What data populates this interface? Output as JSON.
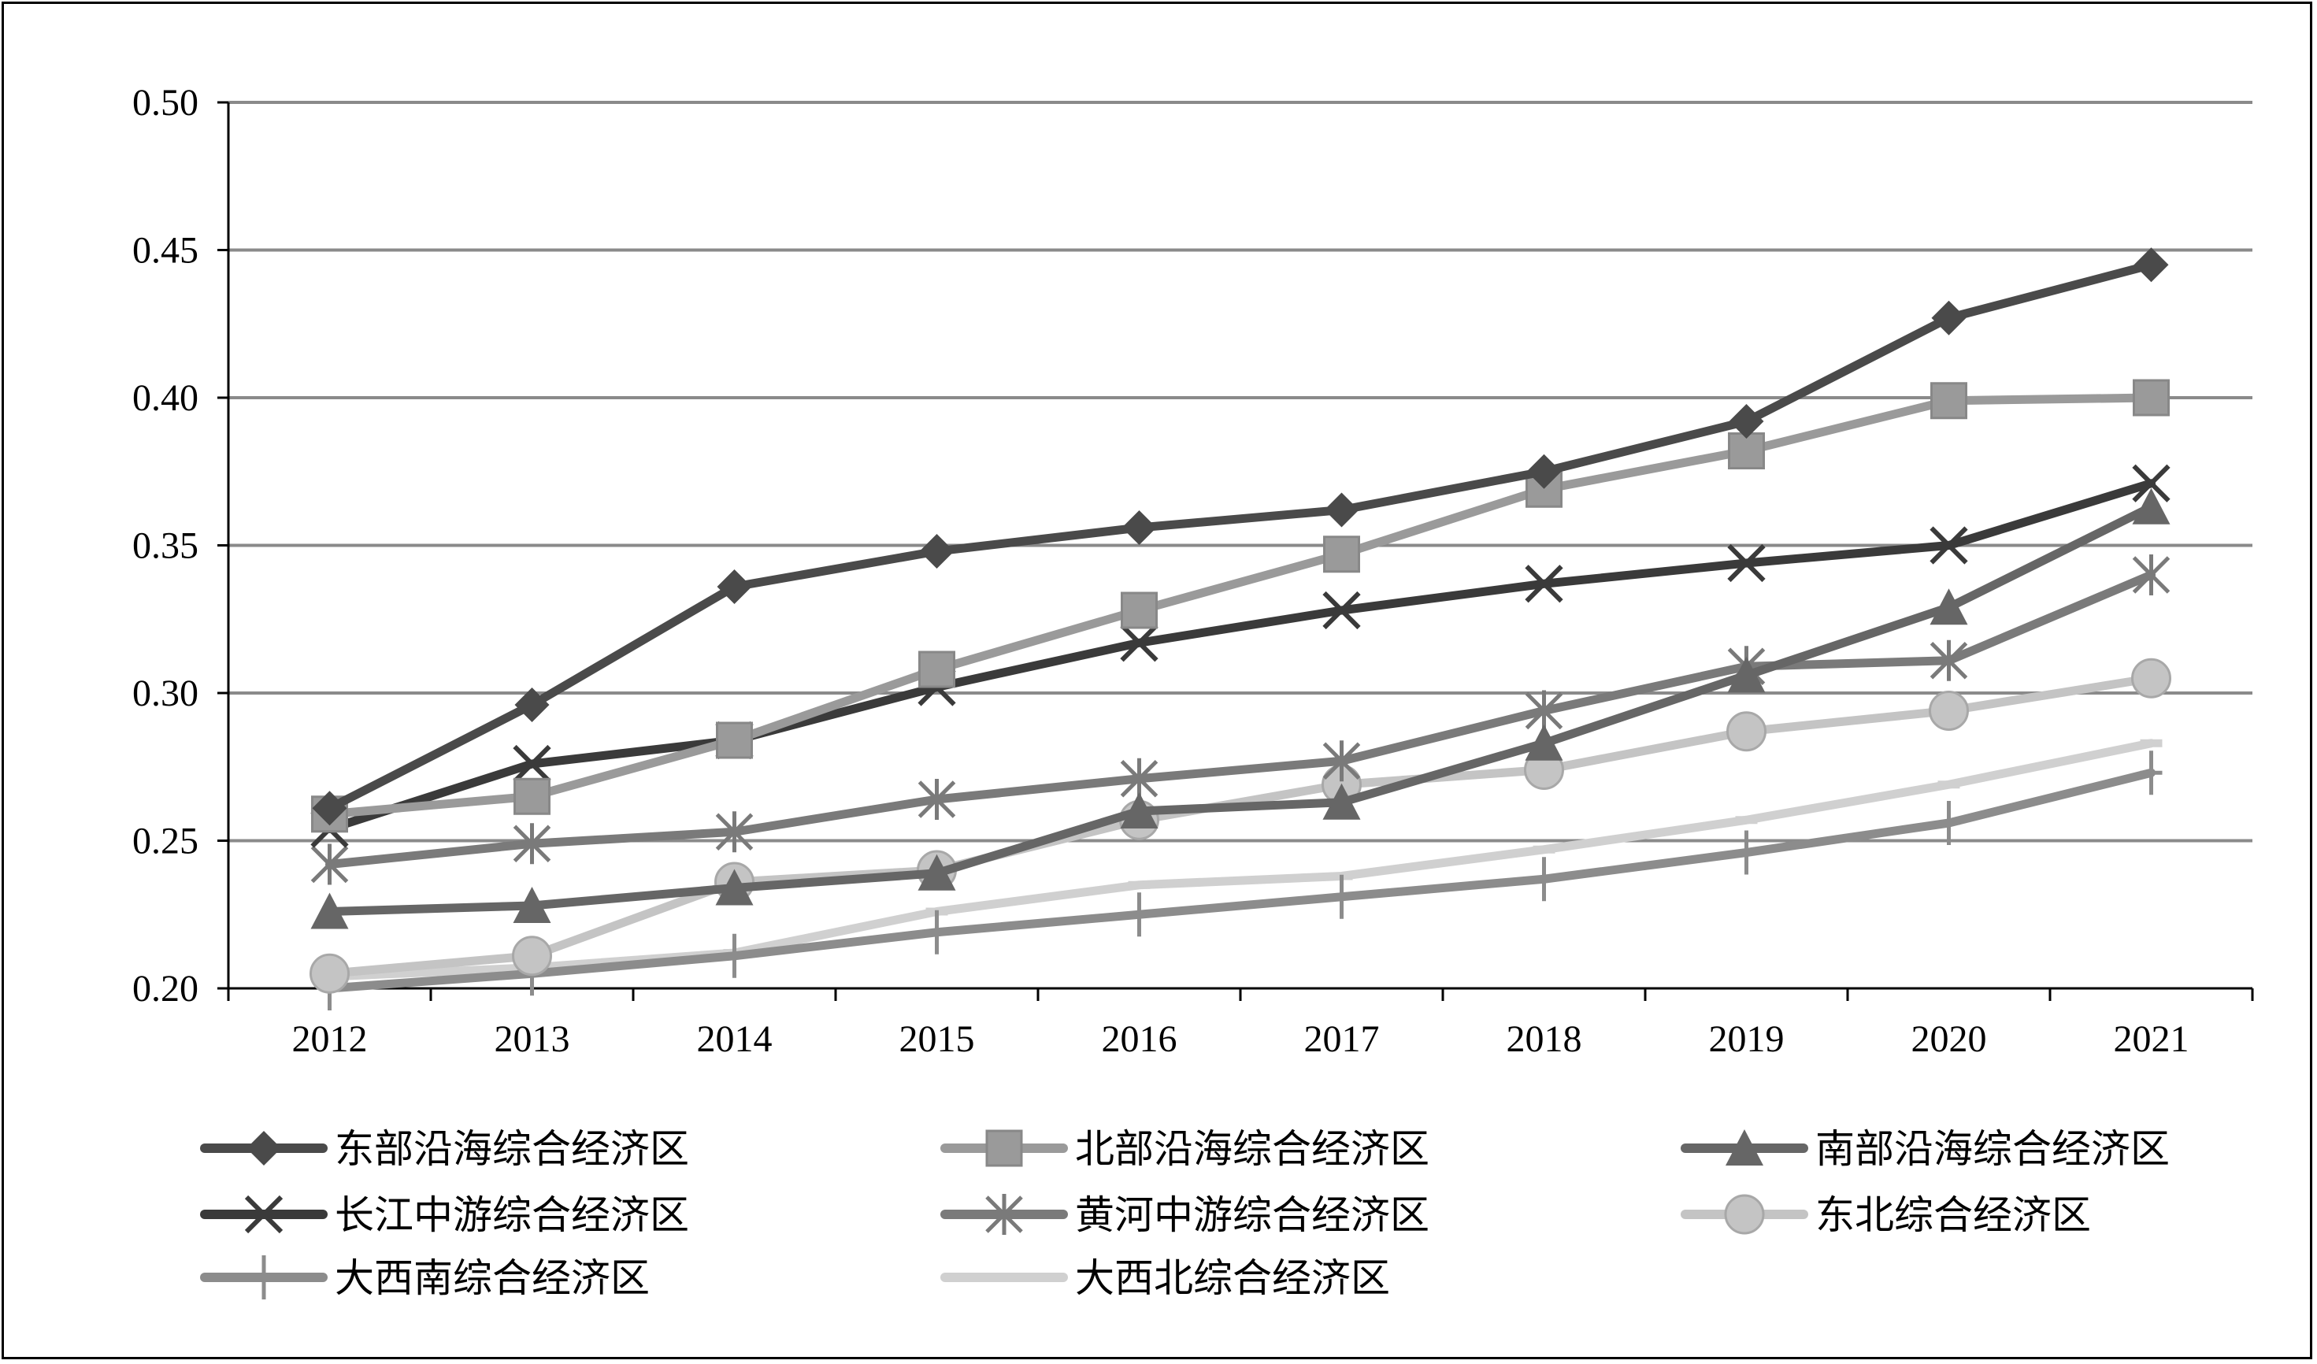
{
  "chart_data": {
    "type": "line",
    "title": "",
    "xlabel": "",
    "ylabel": "",
    "categories": [
      "2012",
      "2013",
      "2014",
      "2015",
      "2016",
      "2017",
      "2018",
      "2019",
      "2020",
      "2021"
    ],
    "ylim": [
      0.2,
      0.5
    ],
    "yticks": [
      "0.20",
      "0.25",
      "0.30",
      "0.35",
      "0.40",
      "0.45",
      "0.50"
    ],
    "grid": true,
    "legend_position": "bottom",
    "series": [
      {
        "name": "东部沿海综合经济区",
        "marker": "diamond",
        "color": "#4a4a4a",
        "values": [
          0.261,
          0.296,
          0.336,
          0.348,
          0.356,
          0.362,
          0.375,
          0.392,
          0.427,
          0.445
        ]
      },
      {
        "name": "北部沿海综合经济区",
        "marker": "square",
        "color": "#9a9a9a",
        "values": [
          0.259,
          0.265,
          0.284,
          0.308,
          0.328,
          0.347,
          0.369,
          0.382,
          0.399,
          0.4
        ]
      },
      {
        "name": "南部沿海综合经济区",
        "marker": "triangle",
        "color": "#666666",
        "values": [
          0.226,
          0.228,
          0.234,
          0.239,
          0.26,
          0.263,
          0.283,
          0.306,
          0.329,
          0.363
        ]
      },
      {
        "name": "长江中游综合经济区",
        "marker": "x",
        "color": "#3a3a3a",
        "values": [
          0.254,
          0.276,
          0.284,
          0.302,
          0.317,
          0.328,
          0.337,
          0.344,
          0.35,
          0.371
        ]
      },
      {
        "name": "黄河中游综合经济区",
        "marker": "star",
        "color": "#7a7a7a",
        "values": [
          0.242,
          0.249,
          0.253,
          0.264,
          0.271,
          0.277,
          0.294,
          0.309,
          0.311,
          0.34
        ]
      },
      {
        "name": "东北综合经济区",
        "marker": "circle",
        "color": "#c4c4c4",
        "values": [
          0.205,
          0.211,
          0.236,
          0.24,
          0.257,
          0.269,
          0.274,
          0.287,
          0.294,
          0.305
        ]
      },
      {
        "name": "大西南综合经济区",
        "marker": "plus",
        "color": "#8c8c8c",
        "values": [
          0.2,
          0.205,
          0.211,
          0.219,
          0.225,
          0.231,
          0.237,
          0.246,
          0.256,
          0.273
        ]
      },
      {
        "name": "大西北综合经济区",
        "marker": "dash",
        "color": "#d0d0d0",
        "values": [
          0.204,
          0.207,
          0.212,
          0.226,
          0.235,
          0.238,
          0.247,
          0.257,
          0.269,
          0.283
        ]
      }
    ]
  }
}
